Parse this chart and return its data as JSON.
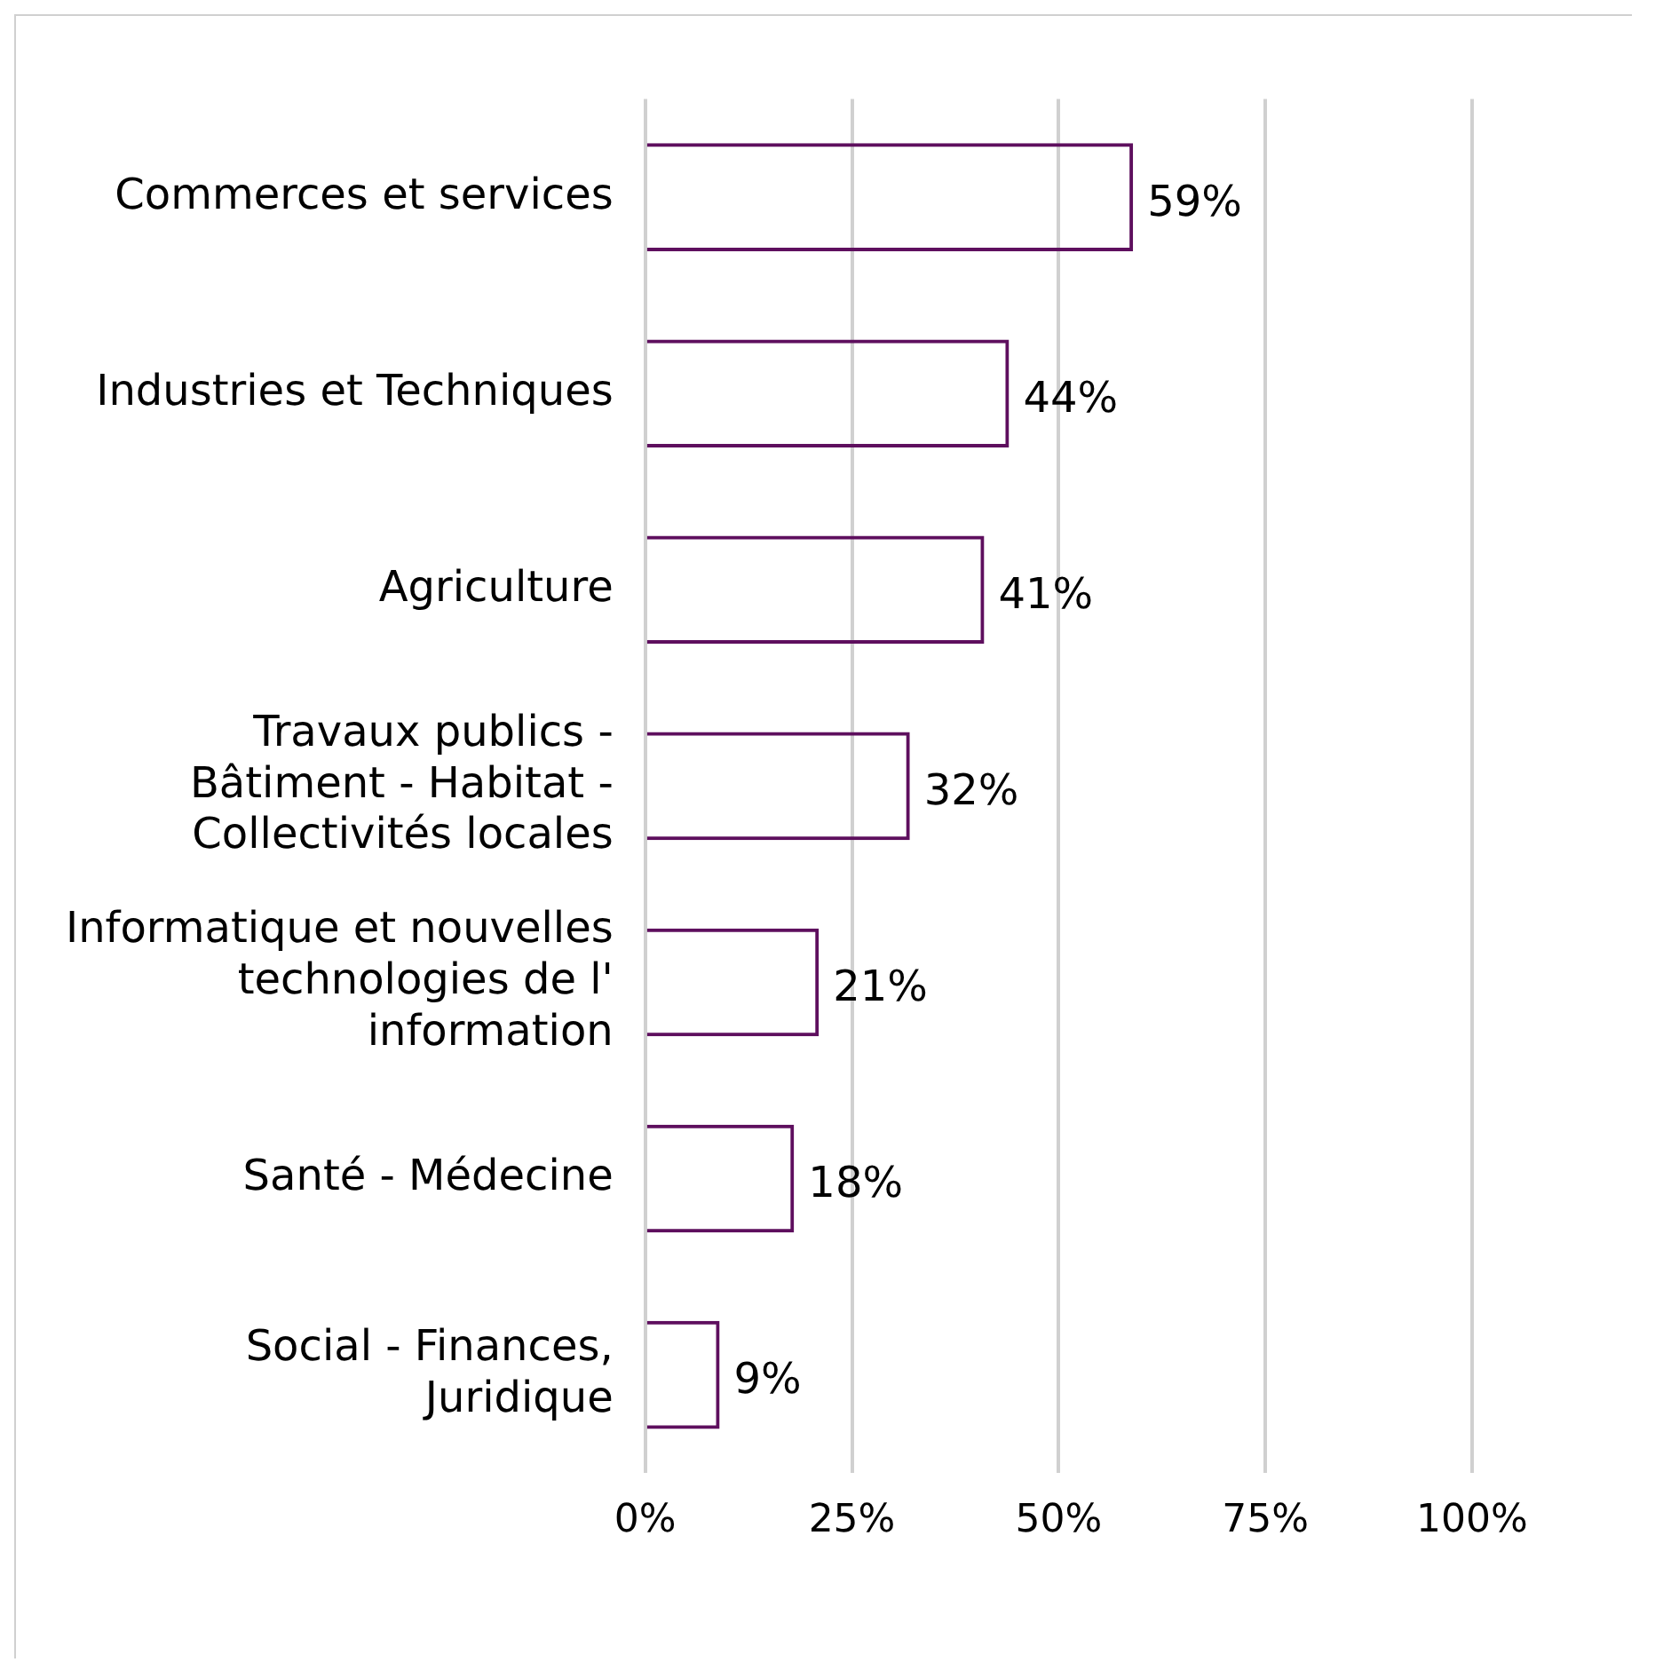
{
  "chart_data": {
    "type": "bar",
    "orientation": "horizontal",
    "categories": [
      "Commerces et services",
      "Industries et Techniques",
      "Agriculture",
      "Travaux publics - Bâtiment - Habitat - Collectivités locales",
      "Informatique et nouvelles technologies de l' information",
      "Santé - Médecine",
      "Social - Finances, Juridique"
    ],
    "values": [
      59,
      44,
      41,
      32,
      21,
      18,
      9
    ],
    "value_labels": [
      "59%",
      "44%",
      "41%",
      "32%",
      "21%",
      "18%",
      "9%"
    ],
    "color": "#5e0f5e",
    "xlim": [
      0,
      100
    ],
    "xticks": [
      {
        "value": 0,
        "label": "0%"
      },
      {
        "value": 25,
        "label": "25%"
      },
      {
        "value": 50,
        "label": "50%"
      },
      {
        "value": 75,
        "label": "75%"
      },
      {
        "value": 100,
        "label": "100%"
      }
    ],
    "grid": "x",
    "legend": false
  }
}
